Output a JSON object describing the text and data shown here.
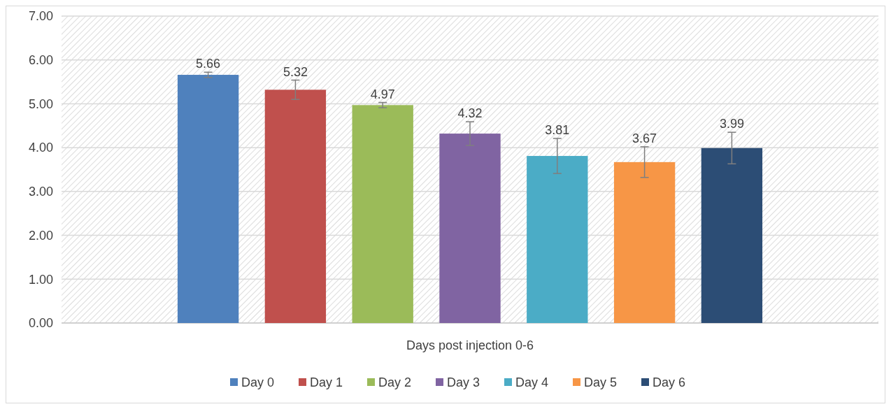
{
  "chart_data": {
    "type": "bar",
    "xlabel": null,
    "categories": [
      "Days post injection 0-6"
    ],
    "series": [
      {
        "name": "Day 0",
        "color": "#4f81bd",
        "values": [
          5.66
        ],
        "errors": [
          0.06
        ]
      },
      {
        "name": "Day 1",
        "color": "#c0504d",
        "values": [
          5.32
        ],
        "errors": [
          0.22
        ]
      },
      {
        "name": "Day 2",
        "color": "#9bbb59",
        "values": [
          4.97
        ],
        "errors": [
          0.06
        ]
      },
      {
        "name": "Day 3",
        "color": "#8064a2",
        "values": [
          4.32
        ],
        "errors": [
          0.27
        ]
      },
      {
        "name": "Day 4",
        "color": "#4bacc6",
        "values": [
          3.81
        ],
        "errors": [
          0.4
        ]
      },
      {
        "name": "Day 5",
        "color": "#f79646",
        "values": [
          3.67
        ],
        "errors": [
          0.35
        ]
      },
      {
        "name": "Day 6",
        "color": "#2c4d75",
        "values": [
          3.99
        ],
        "errors": [
          0.36
        ]
      }
    ],
    "ylim": [
      0,
      7
    ],
    "yticks": [
      {
        "value": 0,
        "label": "0.00"
      },
      {
        "value": 1,
        "label": "1.00"
      },
      {
        "value": 2,
        "label": "2.00"
      },
      {
        "value": 3,
        "label": "3.00"
      },
      {
        "value": 4,
        "label": "4.00"
      },
      {
        "value": 5,
        "label": "5.00"
      },
      {
        "value": 6,
        "label": "6.00"
      },
      {
        "value": 7,
        "label": "7.00"
      }
    ],
    "grid": "y",
    "legend": "bottom",
    "data_labels": true
  }
}
